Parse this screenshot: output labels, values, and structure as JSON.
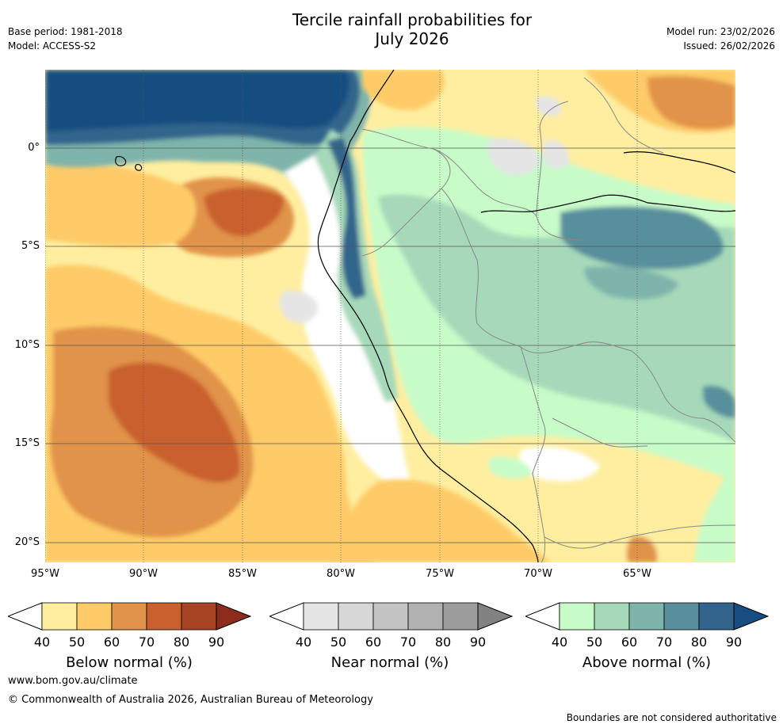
{
  "header": {
    "title_line1": "Tercile rainfall probabilities for",
    "title_line2": "July 2026",
    "base_period": "Base period: 1981-2018",
    "model": "Model: ACCESS-S2",
    "model_run": "Model run: 23/02/2026",
    "issued": "Issued: 26/02/2026"
  },
  "axes": {
    "lat_labels": [
      "0°",
      "5°S",
      "10°S",
      "15°S",
      "20°S"
    ],
    "lon_labels": [
      "95°W",
      "90°W",
      "85°W",
      "80°W",
      "75°W",
      "70°W",
      "65°W"
    ]
  },
  "colorbars": [
    {
      "id": "below",
      "title": "Below normal (%)",
      "ticks": [
        "40",
        "50",
        "60",
        "70",
        "80",
        "90"
      ],
      "colors": [
        "#ffeea0",
        "#fecb68",
        "#e1934a",
        "#c9602e",
        "#a84424",
        "#8b2c1c"
      ]
    },
    {
      "id": "near",
      "title": "Near normal (%)",
      "ticks": [
        "40",
        "50",
        "60",
        "70",
        "80",
        "90"
      ],
      "colors": [
        "#e5e5e5",
        "#d7d7d7",
        "#c4c4c4",
        "#b1b1b1",
        "#9c9c9c",
        "#828282"
      ]
    },
    {
      "id": "above",
      "title": "Above normal (%)",
      "ticks": [
        "40",
        "50",
        "60",
        "70",
        "80",
        "90"
      ],
      "colors": [
        "#c7fcc9",
        "#a6d9b9",
        "#7fb4ab",
        "#598f9c",
        "#33658c",
        "#174d80"
      ]
    }
  ],
  "footer": {
    "website": "www.bom.gov.au/climate",
    "copyright": "© Commonwealth of Australia 2026, Australian Bureau of Meteorology",
    "disclaimer": "Boundaries are not considered authoritative"
  }
}
